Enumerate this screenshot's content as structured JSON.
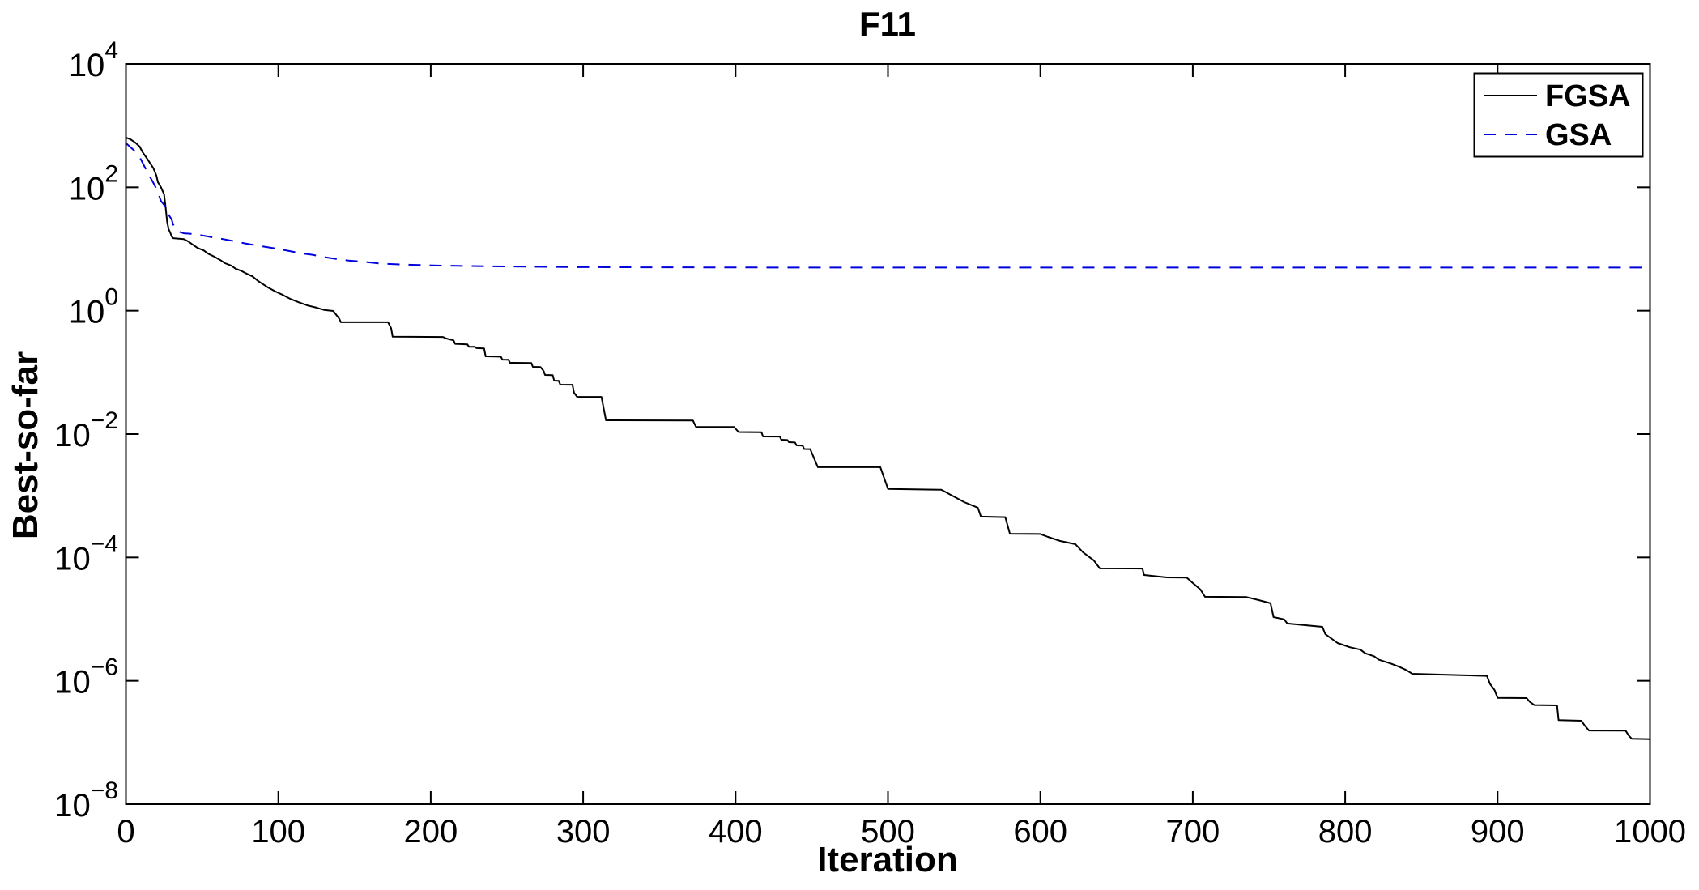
{
  "chart_data": {
    "type": "line",
    "title": "F11",
    "xlabel": "Iteration",
    "ylabel": "Best-so-far",
    "xlim": [
      0,
      1000
    ],
    "x_ticks": [
      0,
      100,
      200,
      300,
      400,
      500,
      600,
      700,
      800,
      900,
      1000
    ],
    "y_scale": "log",
    "ylim_exponents": [
      -8,
      4
    ],
    "y_tick_exponents": [
      4,
      2,
      0,
      -2,
      -4,
      -6,
      -8
    ],
    "grid": false,
    "legend_position": "top-right",
    "series": [
      {
        "name": "FGSA",
        "color": "#000000",
        "style": "solid",
        "points": [
          [
            0,
            640
          ],
          [
            3,
            600
          ],
          [
            6,
            535
          ],
          [
            9,
            460
          ],
          [
            11,
            370
          ],
          [
            14,
            290
          ],
          [
            16,
            243
          ],
          [
            18,
            204
          ],
          [
            20,
            155
          ],
          [
            21,
            121
          ],
          [
            23,
            100
          ],
          [
            25,
            77
          ],
          [
            26,
            49
          ],
          [
            27,
            28
          ],
          [
            28,
            21
          ],
          [
            29,
            18.6
          ],
          [
            30,
            16
          ],
          [
            31,
            15
          ],
          [
            38,
            14.5
          ],
          [
            41,
            13.2
          ],
          [
            44,
            11.7
          ],
          [
            47,
            10.4
          ],
          [
            51,
            9.5
          ],
          [
            54,
            8.4
          ],
          [
            58,
            7.5
          ],
          [
            62,
            6.6
          ],
          [
            65,
            5.9
          ],
          [
            69,
            5.4
          ],
          [
            72,
            4.8
          ],
          [
            76,
            4.4
          ],
          [
            79,
            4.0
          ],
          [
            83,
            3.6
          ],
          [
            87,
            3.0
          ],
          [
            93,
            2.4
          ],
          [
            98,
            2.05
          ],
          [
            103,
            1.8
          ],
          [
            108,
            1.55
          ],
          [
            114,
            1.35
          ],
          [
            119,
            1.22
          ],
          [
            125,
            1.12
          ],
          [
            130,
            1.03
          ],
          [
            136,
            0.99
          ],
          [
            138,
            0.86
          ],
          [
            140,
            0.74
          ],
          [
            141,
            0.65
          ],
          [
            172,
            0.65
          ],
          [
            174,
            0.52
          ],
          [
            175,
            0.38
          ],
          [
            208,
            0.375
          ],
          [
            210,
            0.355
          ],
          [
            215,
            0.33
          ],
          [
            216,
            0.29
          ],
          [
            224,
            0.285
          ],
          [
            225,
            0.26
          ],
          [
            229,
            0.26
          ],
          [
            230,
            0.247
          ],
          [
            235,
            0.245
          ],
          [
            236,
            0.182
          ],
          [
            246,
            0.18
          ],
          [
            247,
            0.161
          ],
          [
            251,
            0.16
          ],
          [
            252,
            0.143
          ],
          [
            266,
            0.142
          ],
          [
            267,
            0.123
          ],
          [
            272,
            0.122
          ],
          [
            274,
            0.106
          ],
          [
            275,
            0.091
          ],
          [
            280,
            0.09
          ],
          [
            281,
            0.0736
          ],
          [
            284,
            0.073
          ],
          [
            285,
            0.0633
          ],
          [
            293,
            0.063
          ],
          [
            294,
            0.0468
          ],
          [
            296,
            0.0402
          ],
          [
            312,
            0.04
          ],
          [
            315,
            0.0167
          ],
          [
            372,
            0.0166
          ],
          [
            374,
            0.0131
          ],
          [
            399,
            0.013
          ],
          [
            402,
            0.0108
          ],
          [
            417,
            0.0107
          ],
          [
            418,
            0.00914
          ],
          [
            429,
            0.0091
          ],
          [
            430,
            0.0081
          ],
          [
            434,
            0.008
          ],
          [
            435,
            0.0074
          ],
          [
            439,
            0.0073
          ],
          [
            440,
            0.00656
          ],
          [
            444,
            0.0065
          ],
          [
            445,
            0.00571
          ],
          [
            449,
            0.0057
          ],
          [
            454,
            0.0029
          ],
          [
            495,
            0.0029
          ],
          [
            500,
            0.00129
          ],
          [
            535,
            0.00125
          ],
          [
            550,
            0.00079
          ],
          [
            559,
            0.00064
          ],
          [
            561,
            0.00046
          ],
          [
            577,
            0.00045
          ],
          [
            580,
            0.000242
          ],
          [
            600,
            0.00024
          ],
          [
            605,
            0.000215
          ],
          [
            613,
            0.000185
          ],
          [
            623,
            0.000164
          ],
          [
            628,
            0.000121
          ],
          [
            635,
            8.97e-05
          ],
          [
            639,
            6.63e-05
          ],
          [
            667,
            6.6e-05
          ],
          [
            668,
            5.2e-05
          ],
          [
            683,
            4.75e-05
          ],
          [
            696,
            4.7e-05
          ],
          [
            700,
            3.85e-05
          ],
          [
            705,
            3.02e-05
          ],
          [
            708,
            2.3e-05
          ],
          [
            735,
            2.28e-05
          ],
          [
            743,
            2.04e-05
          ],
          [
            751,
            1.81e-05
          ],
          [
            753,
            1.08e-05
          ],
          [
            760,
            9.9e-06
          ],
          [
            762,
            8.5e-06
          ],
          [
            785,
            7.5e-06
          ],
          [
            787,
            5.7e-06
          ],
          [
            795,
            4.1e-06
          ],
          [
            803,
            3.5e-06
          ],
          [
            810,
            3.2e-06
          ],
          [
            813,
            2.8e-06
          ],
          [
            819,
            2.5e-06
          ],
          [
            822,
            2.2e-06
          ],
          [
            830,
            1.9e-06
          ],
          [
            835,
            1.7e-06
          ],
          [
            840,
            1.5e-06
          ],
          [
            844,
            1.3e-06
          ],
          [
            893,
            1.2e-06
          ],
          [
            895,
            8.9e-07
          ],
          [
            898,
            7.1e-07
          ],
          [
            900,
            5.3e-07
          ],
          [
            919,
            5.25e-07
          ],
          [
            921,
            4.6e-07
          ],
          [
            924,
            4.05e-07
          ],
          [
            939,
            4e-07
          ],
          [
            940,
            2.3e-07
          ],
          [
            955,
            2.25e-07
          ],
          [
            957,
            1.9e-07
          ],
          [
            960,
            1.56e-07
          ],
          [
            984,
            1.55e-07
          ],
          [
            986,
            1.3e-07
          ],
          [
            988,
            1.15e-07
          ],
          [
            1000,
            1.13e-07
          ]
        ]
      },
      {
        "name": "GSA",
        "color": "#0000dd",
        "style": "dashed",
        "points": [
          [
            0,
            520
          ],
          [
            5,
            405
          ],
          [
            9,
            310
          ],
          [
            12,
            222
          ],
          [
            15,
            160
          ],
          [
            18,
            118
          ],
          [
            21,
            85
          ],
          [
            22,
            70
          ],
          [
            23,
            60
          ],
          [
            25,
            52
          ],
          [
            27,
            43
          ],
          [
            28,
            36
          ],
          [
            30,
            30
          ],
          [
            31,
            25
          ],
          [
            33,
            21
          ],
          [
            35,
            19
          ],
          [
            38,
            18
          ],
          [
            42,
            17.7
          ],
          [
            50,
            16.6
          ],
          [
            56,
            15.6
          ],
          [
            63,
            14.6
          ],
          [
            71,
            13.4
          ],
          [
            79,
            12.2
          ],
          [
            88,
            11.2
          ],
          [
            98,
            10.2
          ],
          [
            106,
            9.4
          ],
          [
            114,
            8.6
          ],
          [
            122,
            8.1
          ],
          [
            130,
            7.4
          ],
          [
            138,
            6.9
          ],
          [
            146,
            6.5
          ],
          [
            156,
            6.2
          ],
          [
            167,
            5.8
          ],
          [
            183,
            5.6
          ],
          [
            204,
            5.4
          ],
          [
            236,
            5.25
          ],
          [
            289,
            5.1
          ],
          [
            342,
            5.05
          ],
          [
            449,
            5.0
          ],
          [
            1000,
            5.0
          ]
        ]
      }
    ]
  }
}
